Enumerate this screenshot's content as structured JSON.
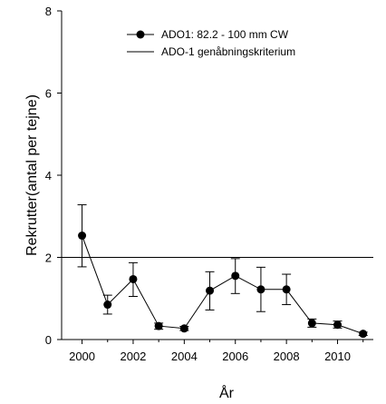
{
  "chart_data": {
    "type": "line",
    "xlabel": "År",
    "ylabel": "Rekrutter(antal per tejne)",
    "xlim": [
      1999.2,
      2011.4
    ],
    "ylim": [
      0,
      8
    ],
    "xticks": [
      2000,
      2002,
      2004,
      2006,
      2008,
      2010
    ],
    "yticks": [
      0,
      2,
      4,
      6,
      8
    ],
    "grid": false,
    "legend_position": "top-center",
    "series": [
      {
        "name": "ADO1: 82.2 - 100 mm CW",
        "marker": "circle",
        "color": "#000000",
        "x": [
          2000,
          2001,
          2002,
          2003,
          2004,
          2005,
          2006,
          2007,
          2008,
          2009,
          2010,
          2011
        ],
        "y": [
          2.53,
          0.85,
          1.47,
          0.33,
          0.27,
          1.19,
          1.55,
          1.22,
          1.22,
          0.4,
          0.36,
          0.14
        ],
        "error_low": [
          1.77,
          0.62,
          1.05,
          0.25,
          0.22,
          0.72,
          1.12,
          0.68,
          0.85,
          0.3,
          0.28,
          0.1
        ],
        "error_high": [
          3.28,
          1.08,
          1.87,
          0.4,
          0.32,
          1.65,
          1.97,
          1.76,
          1.59,
          0.5,
          0.45,
          0.18
        ]
      },
      {
        "name": "ADO-1 genåbningskriterium",
        "type": "hline",
        "color": "#000000",
        "y": 2.0
      }
    ]
  }
}
